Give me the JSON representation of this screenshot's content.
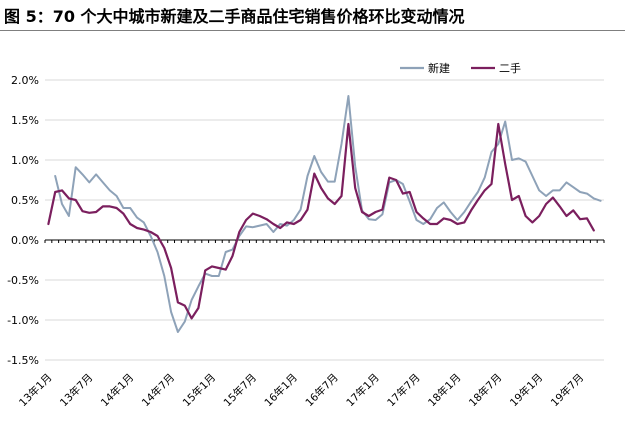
{
  "title": "图 5：70 个大中城市新建及二手商品住宅销售价格环比变动情况",
  "colors": {
    "new_series": "#8ea2b8",
    "second_series": "#7b1f5e",
    "gridline": "#d9d9d9",
    "axis": "#000000"
  },
  "chart_data": {
    "type": "line",
    "title": "",
    "xlabel": "",
    "ylabel": "",
    "ylim": [
      -1.5,
      2.0
    ],
    "y_ticks": [
      2.0,
      1.5,
      1.0,
      0.5,
      0.0,
      -0.5,
      -1.0,
      -1.5
    ],
    "y_tick_labels": [
      "2.0%",
      "1.5%",
      "1.0%",
      "0.5%",
      "0.0%",
      "-0.5%",
      "-1.0%",
      "-1.5%"
    ],
    "grid": "horizontal",
    "legend_position": "top-right",
    "x": [
      "13年1月",
      "13年2月",
      "13年3月",
      "13年4月",
      "13年5月",
      "13年6月",
      "13年7月",
      "13年8月",
      "13年9月",
      "13年10月",
      "13年11月",
      "13年12月",
      "14年1月",
      "14年2月",
      "14年3月",
      "14年4月",
      "14年5月",
      "14年6月",
      "14年7月",
      "14年8月",
      "14年9月",
      "14年10月",
      "14年11月",
      "14年12月",
      "15年1月",
      "15年2月",
      "15年3月",
      "15年4月",
      "15年5月",
      "15年6月",
      "15年7月",
      "15年8月",
      "15年9月",
      "15年10月",
      "15年11月",
      "15年12月",
      "16年1月",
      "16年2月",
      "16年3月",
      "16年4月",
      "16年5月",
      "16年6月",
      "16年7月",
      "16年8月",
      "16年9月",
      "16年10月",
      "16年11月",
      "16年12月",
      "17年1月",
      "17年2月",
      "17年3月",
      "17年4月",
      "17年5月",
      "17年6月",
      "17年7月",
      "17年8月",
      "17年9月",
      "17年10月",
      "17年11月",
      "17年12月",
      "18年1月",
      "18年2月",
      "18年3月",
      "18年4月",
      "18年5月",
      "18年6月",
      "18年7月",
      "18年8月",
      "18年9月",
      "18年10月",
      "18年11月",
      "18年12月",
      "19年1月",
      "19年2月",
      "19年3月",
      "19年4月",
      "19年5月",
      "19年6月",
      "19年7月",
      "19年8月",
      "19年9月",
      "19年10月"
    ],
    "x_tick_labels": [
      "13年1月",
      "13年7月",
      "14年1月",
      "14年7月",
      "15年1月",
      "15年7月",
      "16年1月",
      "16年7月",
      "17年1月",
      "17年7月",
      "18年1月",
      "18年7月",
      "19年1月",
      "19年7月"
    ],
    "series": [
      {
        "name": "新建",
        "values": [
          null,
          0.8,
          0.45,
          0.3,
          0.91,
          0.82,
          0.72,
          0.82,
          0.72,
          0.62,
          0.55,
          0.4,
          0.4,
          0.28,
          0.22,
          0.05,
          -0.15,
          -0.45,
          -0.9,
          -1.15,
          -1.02,
          -0.75,
          -0.58,
          -0.42,
          -0.45,
          -0.45,
          -0.15,
          -0.12,
          0.05,
          0.17,
          0.16,
          0.18,
          0.2,
          0.1,
          0.2,
          0.18,
          0.25,
          0.38,
          0.8,
          1.05,
          0.85,
          0.73,
          0.73,
          1.2,
          1.8,
          0.92,
          0.37,
          0.26,
          0.25,
          0.32,
          0.72,
          0.75,
          0.7,
          0.48,
          0.25,
          0.2,
          0.26,
          0.4,
          0.47,
          0.35,
          0.25,
          0.35,
          0.48,
          0.6,
          0.78,
          1.1,
          1.2,
          1.48,
          1.0,
          1.02,
          0.98,
          0.8,
          0.62,
          0.55,
          0.62,
          0.62,
          0.72,
          0.66,
          0.6,
          0.58,
          0.52,
          0.49
        ]
      },
      {
        "name": "二手",
        "values": [
          0.2,
          0.6,
          0.62,
          0.52,
          0.5,
          0.36,
          0.34,
          0.35,
          0.42,
          0.42,
          0.4,
          0.33,
          0.2,
          0.15,
          0.13,
          0.1,
          0.05,
          -0.1,
          -0.35,
          -0.78,
          -0.82,
          -0.98,
          -0.85,
          -0.38,
          -0.33,
          -0.35,
          -0.37,
          -0.2,
          0.1,
          0.25,
          0.33,
          0.3,
          0.26,
          0.2,
          0.15,
          0.22,
          0.2,
          0.25,
          0.38,
          0.83,
          0.65,
          0.52,
          0.45,
          0.55,
          1.45,
          0.65,
          0.35,
          0.3,
          0.35,
          0.38,
          0.78,
          0.75,
          0.58,
          0.6,
          0.35,
          0.27,
          0.2,
          0.2,
          0.27,
          0.25,
          0.2,
          0.22,
          0.37,
          0.5,
          0.62,
          0.7,
          1.45,
          0.95,
          0.5,
          0.55,
          0.3,
          0.22,
          0.3,
          0.45,
          0.53,
          0.42,
          0.3,
          0.37,
          0.26,
          0.27,
          0.12,
          null
        ]
      }
    ]
  }
}
